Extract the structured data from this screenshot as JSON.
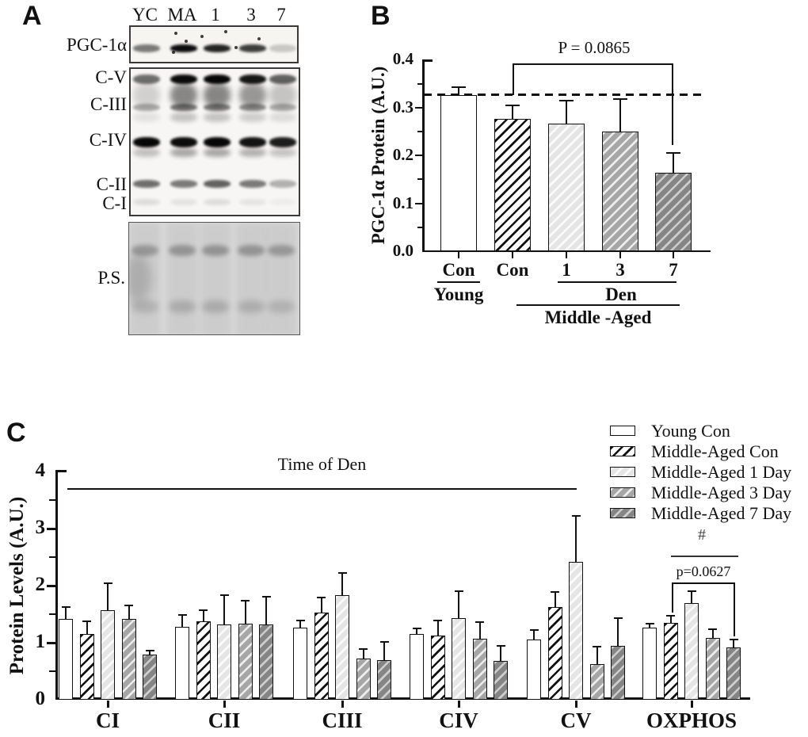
{
  "panel_a": {
    "label": "A",
    "lane_labels": [
      "YC",
      "MA",
      "1",
      "3",
      "7"
    ],
    "pgc_label": "PGC-1α",
    "complex_labels": [
      "C-V",
      "C-III",
      "C-IV",
      "C-II",
      "C-I"
    ],
    "ponceau_label": "P.S."
  },
  "panel_b": {
    "label": "B"
  },
  "panel_c": {
    "label": "C"
  },
  "chart_data": [
    {
      "panel": "B",
      "type": "bar",
      "ylabel": "PGC-1α Protein  (A.U.)",
      "ylim": [
        0.0,
        0.4
      ],
      "yticks": [
        0.0,
        0.1,
        0.2,
        0.3,
        0.4
      ],
      "ytick_labels": [
        "0.0",
        "0.1",
        "0.2",
        "0.3",
        "0.4"
      ],
      "categories": [
        "Con",
        "Con",
        "1",
        "3",
        "7"
      ],
      "values": [
        0.326,
        0.277,
        0.267,
        0.25,
        0.164
      ],
      "errors_upper": [
        0.019,
        0.03,
        0.049,
        0.069,
        0.043
      ],
      "dashed_reference_line": 0.326,
      "significance": {
        "label": "P = 0.0865",
        "from_index": 1,
        "to_index": 4
      },
      "x_group_labels": {
        "young": "Young",
        "den": "Den",
        "middle_aged": "Middle -Aged"
      },
      "grid": false
    },
    {
      "panel": "C",
      "type": "grouped_bar",
      "ylabel": "Protein Levels  (A.U.)",
      "ylim": [
        0,
        4
      ],
      "yticks": [
        0,
        1,
        2,
        3,
        4
      ],
      "ytick_labels": [
        "0",
        "1",
        "2",
        "3",
        "4"
      ],
      "categories": [
        "CI",
        "CII",
        "CIII",
        "CIV",
        "CV",
        "OXPHOS"
      ],
      "series": [
        {
          "name": "Young Con",
          "values": [
            1.42,
            1.28,
            1.27,
            1.15,
            1.06,
            1.26
          ],
          "errors_upper": [
            0.22,
            0.22,
            0.13,
            0.11,
            0.18,
            0.09
          ]
        },
        {
          "name": "Middle-Aged Con",
          "values": [
            1.15,
            1.37,
            1.53,
            1.13,
            1.62,
            1.35
          ],
          "errors_upper": [
            0.24,
            0.22,
            0.27,
            0.27,
            0.28,
            0.13
          ]
        },
        {
          "name": "Middle-Aged 1 Day",
          "values": [
            1.57,
            1.32,
            1.84,
            1.43,
            2.41,
            1.69
          ],
          "errors_upper": [
            0.48,
            0.53,
            0.4,
            0.49,
            0.82,
            0.23
          ]
        },
        {
          "name": "Middle-Aged 3 Day",
          "values": [
            1.41,
            1.34,
            0.72,
            1.07,
            0.63,
            1.08
          ],
          "errors_upper": [
            0.26,
            0.41,
            0.18,
            0.31,
            0.32,
            0.17
          ]
        },
        {
          "name": "Middle-Aged 7 Day",
          "values": [
            0.79,
            1.32,
            0.69,
            0.68,
            0.95,
            0.91
          ],
          "errors_upper": [
            0.09,
            0.5,
            0.34,
            0.28,
            0.5,
            0.16
          ]
        }
      ],
      "annotations": {
        "time_of_den": "Time of Den",
        "hash": "#",
        "p_value": "p=0.0627",
        "p_value_comparison": {
          "group": "OXPHOS",
          "from_series": "Middle-Aged Con",
          "to_series": "Middle-Aged 7 Day"
        }
      },
      "legend_position": "top-right",
      "grid": false
    }
  ]
}
